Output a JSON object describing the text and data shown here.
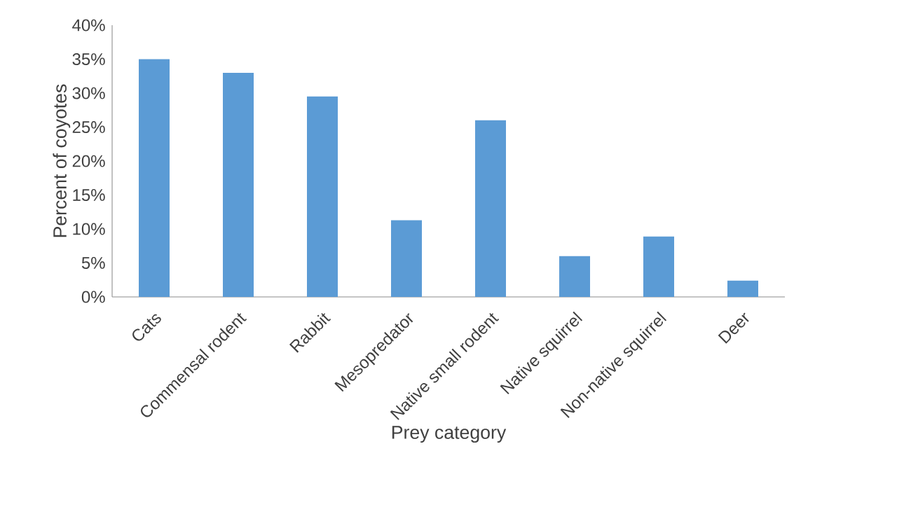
{
  "chart_data": {
    "type": "bar",
    "xlabel": "Prey category",
    "ylabel": "Percent of coyotes",
    "categories": [
      "Cats",
      "Commensal rodent",
      "Rabbit",
      "Mesopredator",
      "Native small rodent",
      "Native squirrel",
      "Non-native squirrel",
      "Deer"
    ],
    "values": [
      35,
      33,
      29.5,
      11.3,
      26,
      6,
      8.9,
      2.4
    ],
    "color": "#5b9bd5",
    "ylim": [
      0,
      40
    ],
    "yticks": [
      {
        "value": 0,
        "label": "0%"
      },
      {
        "value": 5,
        "label": "5%"
      },
      {
        "value": 10,
        "label": "10%"
      },
      {
        "value": 15,
        "label": "15%"
      },
      {
        "value": 20,
        "label": "20%"
      },
      {
        "value": 25,
        "label": "25%"
      },
      {
        "value": 30,
        "label": "30%"
      },
      {
        "value": 35,
        "label": "35%"
      },
      {
        "value": 40,
        "label": "40%"
      }
    ]
  }
}
